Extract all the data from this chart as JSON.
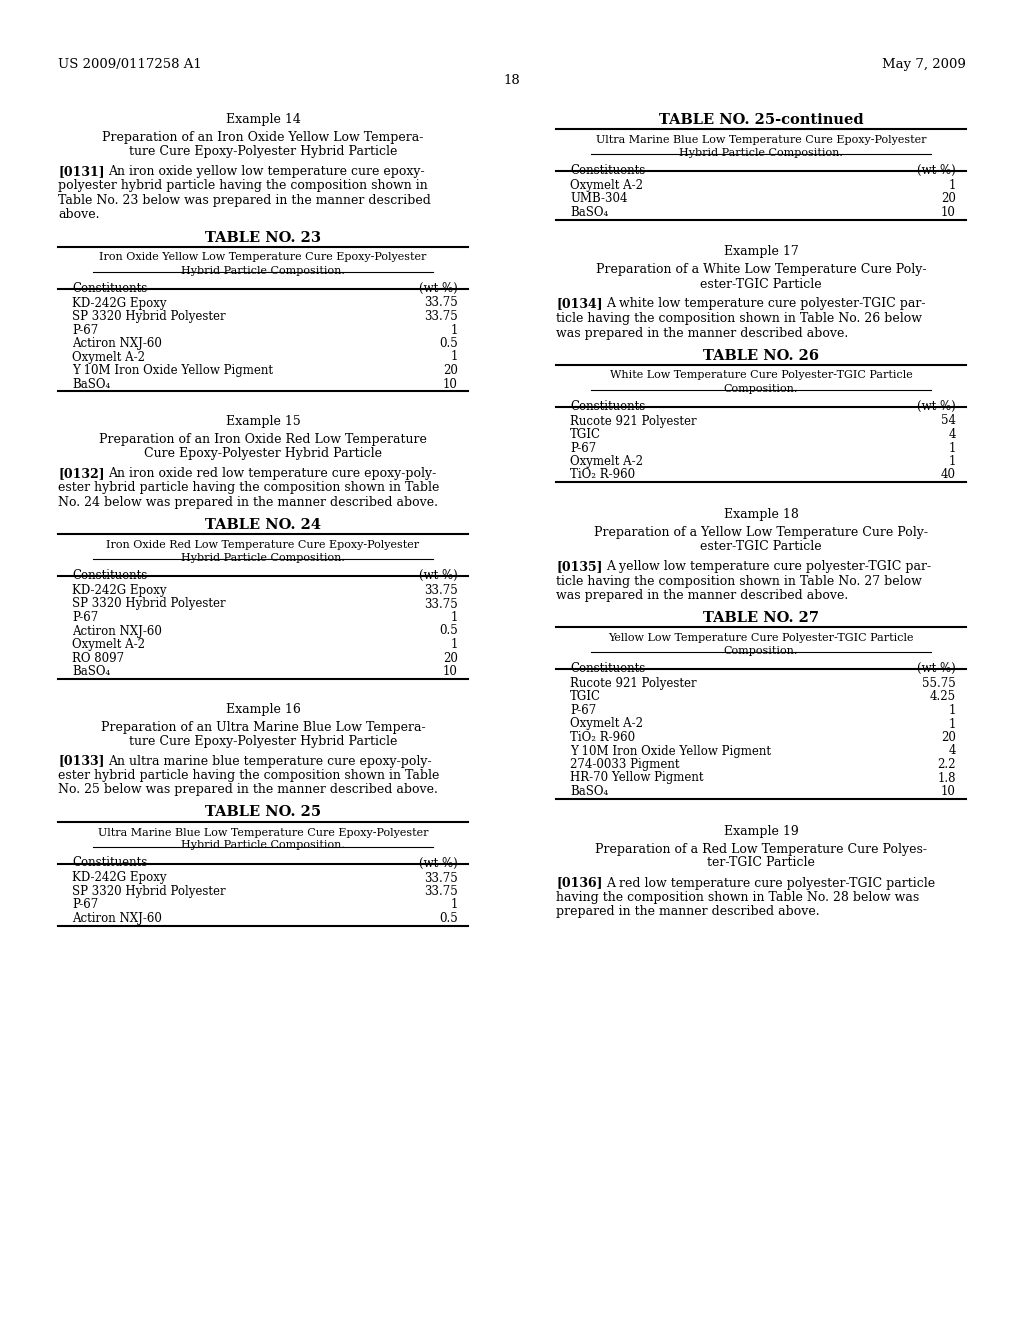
{
  "background_color": "#ffffff",
  "header_left": "US 2009/0117258 A1",
  "header_right": "May 7, 2009",
  "page_number": "18",
  "left_column": {
    "example14_title": "Example 14",
    "table23_title": "TABLE NO. 23",
    "table23_subtitle1": "Iron Oxide Yellow Low Temperature Cure Epoxy-Polyester",
    "table23_subtitle2": "Hybrid Particle Composition.",
    "table23_col1": "Constituents",
    "table23_col2": "(wt %)",
    "table23_rows": [
      [
        "KD-242G Epoxy",
        "33.75"
      ],
      [
        "SP 3320 Hybrid Polyester",
        "33.75"
      ],
      [
        "P-67",
        "1"
      ],
      [
        "Actiron NXJ-60",
        "0.5"
      ],
      [
        "Oxymelt A-2",
        "1"
      ],
      [
        "Y 10M Iron Oxide Yellow Pigment",
        "20"
      ],
      [
        "BaSO₄",
        "10"
      ]
    ],
    "example15_title": "Example 15",
    "table24_title": "TABLE NO. 24",
    "table24_subtitle1": "Iron Oxide Red Low Temperature Cure Epoxy-Polyester",
    "table24_subtitle2": "Hybrid Particle Composition.",
    "table24_col1": "Constituents",
    "table24_col2": "(wt %)",
    "table24_rows": [
      [
        "KD-242G Epoxy",
        "33.75"
      ],
      [
        "SP 3320 Hybrid Polyester",
        "33.75"
      ],
      [
        "P-67",
        "1"
      ],
      [
        "Actiron NXJ-60",
        "0.5"
      ],
      [
        "Oxymelt A-2",
        "1"
      ],
      [
        "RO 8097",
        "20"
      ],
      [
        "BaSO₄",
        "10"
      ]
    ],
    "example16_title": "Example 16",
    "table25_title": "TABLE NO. 25",
    "table25_subtitle1": "Ultra Marine Blue Low Temperature Cure Epoxy-Polyester",
    "table25_subtitle2": "Hybrid Particle Composition.",
    "table25_col1": "Constituents",
    "table25_col2": "(wt %)",
    "table25_rows": [
      [
        "KD-242G Epoxy",
        "33.75"
      ],
      [
        "SP 3320 Hybrid Polyester",
        "33.75"
      ],
      [
        "P-67",
        "1"
      ],
      [
        "Actiron NXJ-60",
        "0.5"
      ]
    ]
  },
  "right_column": {
    "table25cont_title": "TABLE NO. 25-continued",
    "table25cont_subtitle1": "Ultra Marine Blue Low Temperature Cure Epoxy-Polyester",
    "table25cont_subtitle2": "Hybrid Particle Composition.",
    "table25cont_col1": "Constituents",
    "table25cont_col2": "(wt %)",
    "table25cont_rows": [
      [
        "Oxymelt A-2",
        "1"
      ],
      [
        "UMB-304",
        "20"
      ],
      [
        "BaSO₄",
        "10"
      ]
    ],
    "example17_title": "Example 17",
    "table26_title": "TABLE NO. 26",
    "table26_subtitle1": "White Low Temperature Cure Polyester-TGIC Particle",
    "table26_subtitle2": "Composition.",
    "table26_col1": "Constituents",
    "table26_col2": "(wt %)",
    "table26_rows": [
      [
        "Rucote 921 Polyester",
        "54"
      ],
      [
        "TGIC",
        "4"
      ],
      [
        "P-67",
        "1"
      ],
      [
        "Oxymelt A-2",
        "1"
      ],
      [
        "TiO₂ R-960",
        "40"
      ]
    ],
    "example18_title": "Example 18",
    "table27_title": "TABLE NO. 27",
    "table27_subtitle1": "Yellow Low Temperature Cure Polyester-TGIC Particle",
    "table27_subtitle2": "Composition.",
    "table27_col1": "Constituents",
    "table27_col2": "(wt %)",
    "table27_rows": [
      [
        "Rucote 921 Polyester",
        "55.75"
      ],
      [
        "TGIC",
        "4.25"
      ],
      [
        "P-67",
        "1"
      ],
      [
        "Oxymelt A-2",
        "1"
      ],
      [
        "TiO₂ R-960",
        "20"
      ],
      [
        "Y 10M Iron Oxide Yellow Pigment",
        "4"
      ],
      [
        "274-0033 Pigment",
        "2.2"
      ],
      [
        "HR-70 Yellow Pigment",
        "1.8"
      ],
      [
        "BaSO₄",
        "10"
      ]
    ],
    "example19_title": "Example 19"
  }
}
